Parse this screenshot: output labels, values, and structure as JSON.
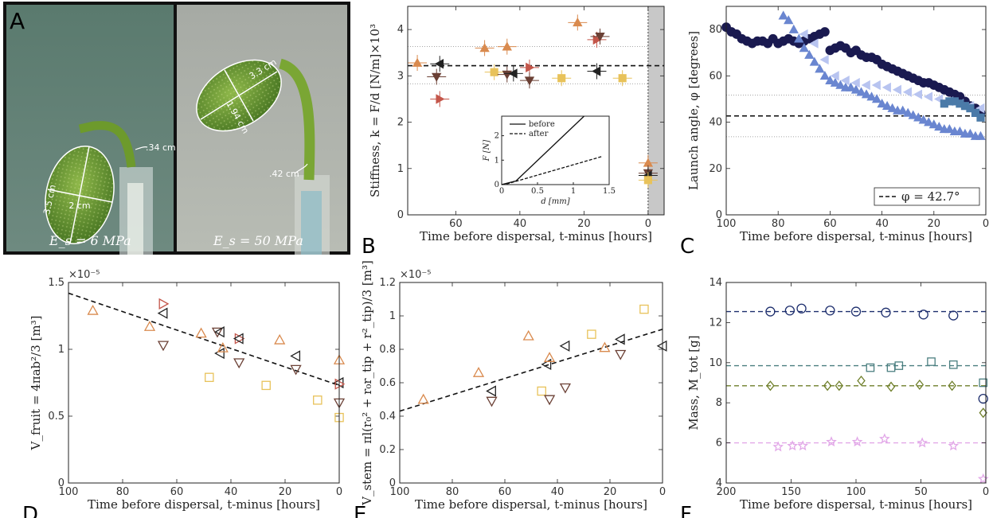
{
  "photo": {
    "letter": "A",
    "left": {
      "label": "E_s = 6 MPa",
      "dims": [
        "2 cm",
        "3.5 cm",
        ".34 cm"
      ]
    },
    "right": {
      "label": "E_s = 50 MPa",
      "dims": [
        "3.3 cm",
        "1.94 cm",
        ".42 cm"
      ]
    }
  },
  "chart_data": [
    {
      "panel": "B",
      "type": "scatter",
      "xlabel": "Time before dispersal, t-minus [hours]",
      "ylabel": "Stiffness, k = F/d [N/m]×10³",
      "xlim": [
        75,
        -5
      ],
      "ylim": [
        0,
        4.5
      ],
      "xticks": [
        60,
        40,
        20,
        0
      ],
      "yticks": [
        0,
        1,
        2,
        3,
        4
      ],
      "mean_line": 3.22,
      "band": [
        2.83,
        3.63
      ],
      "shaded_region": [
        0,
        -5
      ],
      "points": [
        {
          "x": 72,
          "y": 3.28,
          "c": "#d98a4e",
          "m": "tri-up"
        },
        {
          "x": 66,
          "y": 2.98,
          "c": "#6b4035",
          "m": "tri-down"
        },
        {
          "x": 65,
          "y": 3.26,
          "c": "#222222",
          "m": "tri-left"
        },
        {
          "x": 65,
          "y": 2.5,
          "c": "#c4564a",
          "m": "tri-right"
        },
        {
          "x": 51,
          "y": 3.6,
          "c": "#d98a4e",
          "m": "tri-up"
        },
        {
          "x": 48,
          "y": 3.08,
          "c": "#e8c25a",
          "m": "square"
        },
        {
          "x": 44,
          "y": 3.03,
          "c": "#6b4035",
          "m": "tri-down"
        },
        {
          "x": 44,
          "y": 3.63,
          "c": "#d98a4e",
          "m": "tri-up"
        },
        {
          "x": 42,
          "y": 3.05,
          "c": "#222222",
          "m": "tri-left"
        },
        {
          "x": 37,
          "y": 3.18,
          "c": "#c4564a",
          "m": "tri-right"
        },
        {
          "x": 37,
          "y": 2.9,
          "c": "#6b4035",
          "m": "tri-down"
        },
        {
          "x": 27,
          "y": 2.95,
          "c": "#e8c25a",
          "m": "square"
        },
        {
          "x": 22,
          "y": 4.15,
          "c": "#d98a4e",
          "m": "tri-up"
        },
        {
          "x": 16,
          "y": 3.1,
          "c": "#222222",
          "m": "tri-left"
        },
        {
          "x": 16,
          "y": 3.78,
          "c": "#c4564a",
          "m": "tri-right"
        },
        {
          "x": 15,
          "y": 3.85,
          "c": "#6b4035",
          "m": "tri-down"
        },
        {
          "x": 8,
          "y": 2.95,
          "c": "#e8c25a",
          "m": "square"
        },
        {
          "x": 0,
          "y": 1.12,
          "c": "#d98a4e",
          "m": "tri-up"
        },
        {
          "x": 0,
          "y": 0.9,
          "c": "#6b4035",
          "m": "tri-down"
        },
        {
          "x": 0,
          "y": 0.85,
          "c": "#222222",
          "m": "tri-left"
        },
        {
          "x": 0,
          "y": 0.75,
          "c": "#e8c25a",
          "m": "square"
        }
      ],
      "inset": {
        "type": "line",
        "xlabel": "d [mm]",
        "ylabel": "F [N]",
        "xlim": [
          0,
          1.5
        ],
        "ylim": [
          0,
          2.8
        ],
        "xticks": [
          0,
          0.5,
          1,
          1.5
        ],
        "xticklabels": [
          "0",
          "0.5",
          "1",
          "1.5"
        ],
        "yticks": [
          0,
          1,
          2
        ],
        "yticklabels": [
          "0",
          "1",
          "2"
        ],
        "series": [
          {
            "name": "before",
            "x": [
              0,
              0.2,
              1.15
            ],
            "y": [
              0,
              0.15,
              2.8
            ]
          },
          {
            "name": "after",
            "x": [
              0,
              0.1,
              1.4
            ],
            "y": [
              0,
              0.05,
              1.15
            ]
          }
        ]
      }
    },
    {
      "panel": "C",
      "type": "scatter",
      "xlabel": "Time before dispersal, t-minus [hours]",
      "ylabel": "Launch angle, φ [degrees]",
      "xlim": [
        100,
        0
      ],
      "ylim": [
        0,
        90
      ],
      "xticks": [
        100,
        80,
        60,
        40,
        20,
        0
      ],
      "yticks": [
        0,
        20,
        40,
        60,
        80
      ],
      "mean_line": 42.7,
      "band": [
        33.7,
        51.7
      ],
      "legend": "φ = 42.7°",
      "series": [
        {
          "m": "circle",
          "c": "#1a1a50",
          "x": [
            100,
            98,
            96,
            94,
            92,
            90,
            88,
            86,
            84,
            82,
            80,
            78,
            76,
            74,
            72,
            70,
            68,
            66,
            64,
            62,
            60,
            58,
            56,
            54,
            52,
            50,
            48,
            46,
            44,
            42,
            40,
            38,
            36,
            34,
            32,
            30,
            28,
            26,
            24,
            22,
            20,
            18,
            16,
            14,
            12,
            10,
            8,
            6,
            4,
            2
          ],
          "y": [
            81,
            79,
            78,
            76,
            75,
            74,
            75,
            75,
            74,
            76,
            74,
            75,
            76,
            75,
            74,
            75,
            76,
            77,
            78,
            79,
            71,
            72,
            73,
            72,
            70,
            71,
            69,
            68,
            68,
            67,
            65,
            64,
            63,
            62,
            61,
            60,
            59,
            58,
            57,
            57,
            56,
            55,
            54,
            53,
            52,
            51,
            49,
            47,
            46,
            44
          ]
        },
        {
          "m": "tri-up",
          "c": "#6a86d0",
          "x": [
            78,
            76,
            74,
            72,
            70,
            68,
            66,
            64,
            62,
            60,
            58,
            56,
            54,
            52,
            50,
            48,
            46,
            44,
            42,
            40,
            38,
            36,
            34,
            32,
            30,
            28,
            26,
            24,
            22,
            20,
            18,
            16,
            14,
            12,
            10,
            8,
            6,
            4,
            2
          ],
          "y": [
            86,
            84,
            80,
            76,
            72,
            69,
            66,
            63,
            60,
            58,
            57,
            56,
            55,
            55,
            54,
            53,
            52,
            51,
            50,
            48,
            47,
            46,
            45,
            45,
            44,
            43,
            42,
            41,
            40,
            39,
            38,
            37,
            37,
            36,
            36,
            35,
            35,
            34,
            34
          ]
        },
        {
          "m": "tri-left",
          "c": "#b8c4f0",
          "x": [
            70,
            66,
            62,
            58,
            54,
            50,
            46,
            42,
            38,
            34,
            30,
            26,
            22,
            18,
            14,
            10,
            6,
            2
          ],
          "y": [
            78,
            74,
            67,
            60,
            58,
            57,
            56,
            56,
            55,
            54,
            53,
            52,
            51,
            50,
            49,
            48,
            47,
            46
          ]
        },
        {
          "m": "square",
          "c": "#4b7aa8",
          "x": [
            16,
            14,
            12,
            10,
            8,
            6,
            4,
            2
          ],
          "y": [
            48,
            49,
            49,
            48,
            47,
            46,
            44,
            42
          ]
        }
      ]
    },
    {
      "panel": "D",
      "type": "scatter",
      "xlabel": "Time before dispersal, t-minus [hours]",
      "ylabel": "V_fruit = 4πab²/3 [m³]",
      "exponent": "×10⁻⁵",
      "xlim": [
        100,
        0
      ],
      "ylim": [
        0,
        1.5
      ],
      "xticks": [
        100,
        80,
        60,
        40,
        20,
        0
      ],
      "yticks": [
        0,
        0.5,
        1,
        1.5
      ],
      "ytick_labels": [
        "0",
        "0.5",
        "1",
        "1.5"
      ],
      "fit": {
        "x": [
          100,
          0
        ],
        "y": [
          1.42,
          0.73
        ]
      },
      "points": [
        {
          "x": 91,
          "y": 1.29,
          "c": "#d98a4e",
          "m": "tri-up"
        },
        {
          "x": 70,
          "y": 1.17,
          "c": "#d98a4e",
          "m": "tri-up"
        },
        {
          "x": 65,
          "y": 1.34,
          "c": "#c4564a",
          "m": "tri-right"
        },
        {
          "x": 65,
          "y": 1.27,
          "c": "#222222",
          "m": "tri-left"
        },
        {
          "x": 65,
          "y": 1.03,
          "c": "#6b4035",
          "m": "tri-down"
        },
        {
          "x": 51,
          "y": 1.12,
          "c": "#d98a4e",
          "m": "tri-up"
        },
        {
          "x": 48,
          "y": 0.79,
          "c": "#e8c25a",
          "m": "square"
        },
        {
          "x": 45,
          "y": 1.13,
          "c": "#6b4035",
          "m": "tri-down"
        },
        {
          "x": 44,
          "y": 1.13,
          "c": "#222222",
          "m": "tri-left"
        },
        {
          "x": 44,
          "y": 0.97,
          "c": "#222222",
          "m": "tri-left"
        },
        {
          "x": 43,
          "y": 1.01,
          "c": "#d98a4e",
          "m": "tri-up"
        },
        {
          "x": 37,
          "y": 1.08,
          "c": "#c4564a",
          "m": "tri-right"
        },
        {
          "x": 37,
          "y": 1.08,
          "c": "#222222",
          "m": "tri-left"
        },
        {
          "x": 37,
          "y": 0.9,
          "c": "#6b4035",
          "m": "tri-down"
        },
        {
          "x": 27,
          "y": 0.73,
          "c": "#e8c25a",
          "m": "square"
        },
        {
          "x": 22,
          "y": 1.07,
          "c": "#d98a4e",
          "m": "tri-up"
        },
        {
          "x": 16,
          "y": 0.95,
          "c": "#222222",
          "m": "tri-left"
        },
        {
          "x": 16,
          "y": 0.85,
          "c": "#6b4035",
          "m": "tri-down"
        },
        {
          "x": 8,
          "y": 0.62,
          "c": "#e8c25a",
          "m": "square"
        },
        {
          "x": 0,
          "y": 0.92,
          "c": "#d98a4e",
          "m": "tri-up"
        },
        {
          "x": 0,
          "y": 0.75,
          "c": "#222222",
          "m": "tri-left"
        },
        {
          "x": 0,
          "y": 0.74,
          "c": "#c4564a",
          "m": "tri-right"
        },
        {
          "x": 0,
          "y": 0.6,
          "c": "#6b4035",
          "m": "tri-down"
        },
        {
          "x": 0,
          "y": 0.49,
          "c": "#e8c25a",
          "m": "square"
        }
      ]
    },
    {
      "panel": "E",
      "type": "scatter",
      "xlabel": "Time before dispersal, t-minus [hours]",
      "ylabel": "V_stem = πl(r₀² + r₀r_tip + r²_tip)/3 [m³]",
      "exponent": "×10⁻⁵",
      "xlim": [
        100,
        0
      ],
      "ylim": [
        0,
        1.2
      ],
      "xticks": [
        100,
        80,
        60,
        40,
        20,
        0
      ],
      "yticks": [
        0,
        0.2,
        0.4,
        0.6,
        0.8,
        1,
        1.2
      ],
      "ytick_labels": [
        "0",
        "0.2",
        "0.4",
        "0.6",
        "0.8",
        "1",
        "1.2"
      ],
      "fit": {
        "x": [
          100,
          0
        ],
        "y": [
          0.43,
          0.92
        ]
      },
      "points": [
        {
          "x": 91,
          "y": 0.5,
          "c": "#d98a4e",
          "m": "tri-up"
        },
        {
          "x": 70,
          "y": 0.66,
          "c": "#d98a4e",
          "m": "tri-up"
        },
        {
          "x": 65,
          "y": 0.55,
          "c": "#222222",
          "m": "tri-left"
        },
        {
          "x": 65,
          "y": 0.49,
          "c": "#6b4035",
          "m": "tri-down"
        },
        {
          "x": 51,
          "y": 0.88,
          "c": "#d98a4e",
          "m": "tri-up"
        },
        {
          "x": 46,
          "y": 0.55,
          "c": "#e8c25a",
          "m": "square"
        },
        {
          "x": 44,
          "y": 0.71,
          "c": "#222222",
          "m": "tri-left"
        },
        {
          "x": 43,
          "y": 0.75,
          "c": "#d98a4e",
          "m": "tri-up"
        },
        {
          "x": 43,
          "y": 0.5,
          "c": "#6b4035",
          "m": "tri-down"
        },
        {
          "x": 37,
          "y": 0.82,
          "c": "#222222",
          "m": "tri-left"
        },
        {
          "x": 37,
          "y": 0.57,
          "c": "#6b4035",
          "m": "tri-down"
        },
        {
          "x": 27,
          "y": 0.89,
          "c": "#e8c25a",
          "m": "square"
        },
        {
          "x": 22,
          "y": 0.81,
          "c": "#d98a4e",
          "m": "tri-up"
        },
        {
          "x": 16,
          "y": 0.86,
          "c": "#222222",
          "m": "tri-left"
        },
        {
          "x": 16,
          "y": 0.77,
          "c": "#6b4035",
          "m": "tri-down"
        },
        {
          "x": 7,
          "y": 1.04,
          "c": "#e8c25a",
          "m": "square"
        },
        {
          "x": 0,
          "y": 0.82,
          "c": "#222222",
          "m": "tri-left"
        }
      ]
    },
    {
      "panel": "F",
      "type": "scatter",
      "xlabel": "Time before dispersal, t-minus [hours]",
      "ylabel": "Mass, M_tot [g]",
      "xlim": [
        200,
        0
      ],
      "ylim": [
        4,
        14
      ],
      "xticks": [
        200,
        150,
        100,
        50,
        0
      ],
      "yticks": [
        4,
        6,
        8,
        10,
        12,
        14
      ],
      "series": [
        {
          "m": "circle",
          "c": "#1e2f6e",
          "level": 12.55,
          "x": [
            166,
            151,
            142,
            120,
            100,
            77,
            48,
            25,
            2
          ],
          "y": [
            12.55,
            12.6,
            12.7,
            12.6,
            12.55,
            12.5,
            12.4,
            12.35,
            8.2
          ]
        },
        {
          "m": "square",
          "c": "#4b7f80",
          "level": 9.85,
          "x": [
            89,
            73,
            67,
            42,
            25,
            2
          ],
          "y": [
            9.75,
            9.75,
            9.85,
            10.05,
            9.9,
            9.0
          ]
        },
        {
          "m": "diamond",
          "c": "#6f7f2a",
          "level": 8.85,
          "x": [
            166,
            122,
            113,
            96,
            73,
            51,
            26,
            2
          ],
          "y": [
            8.85,
            8.85,
            8.85,
            9.1,
            8.8,
            8.9,
            8.85,
            7.5
          ]
        },
        {
          "m": "star",
          "c": "#e2a8e8",
          "level": 6.0,
          "x": [
            160,
            149,
            141,
            119,
            99,
            78,
            49,
            25,
            2
          ],
          "y": [
            5.8,
            5.85,
            5.85,
            6.05,
            6.05,
            6.2,
            6.0,
            5.85,
            4.2
          ]
        }
      ]
    }
  ]
}
